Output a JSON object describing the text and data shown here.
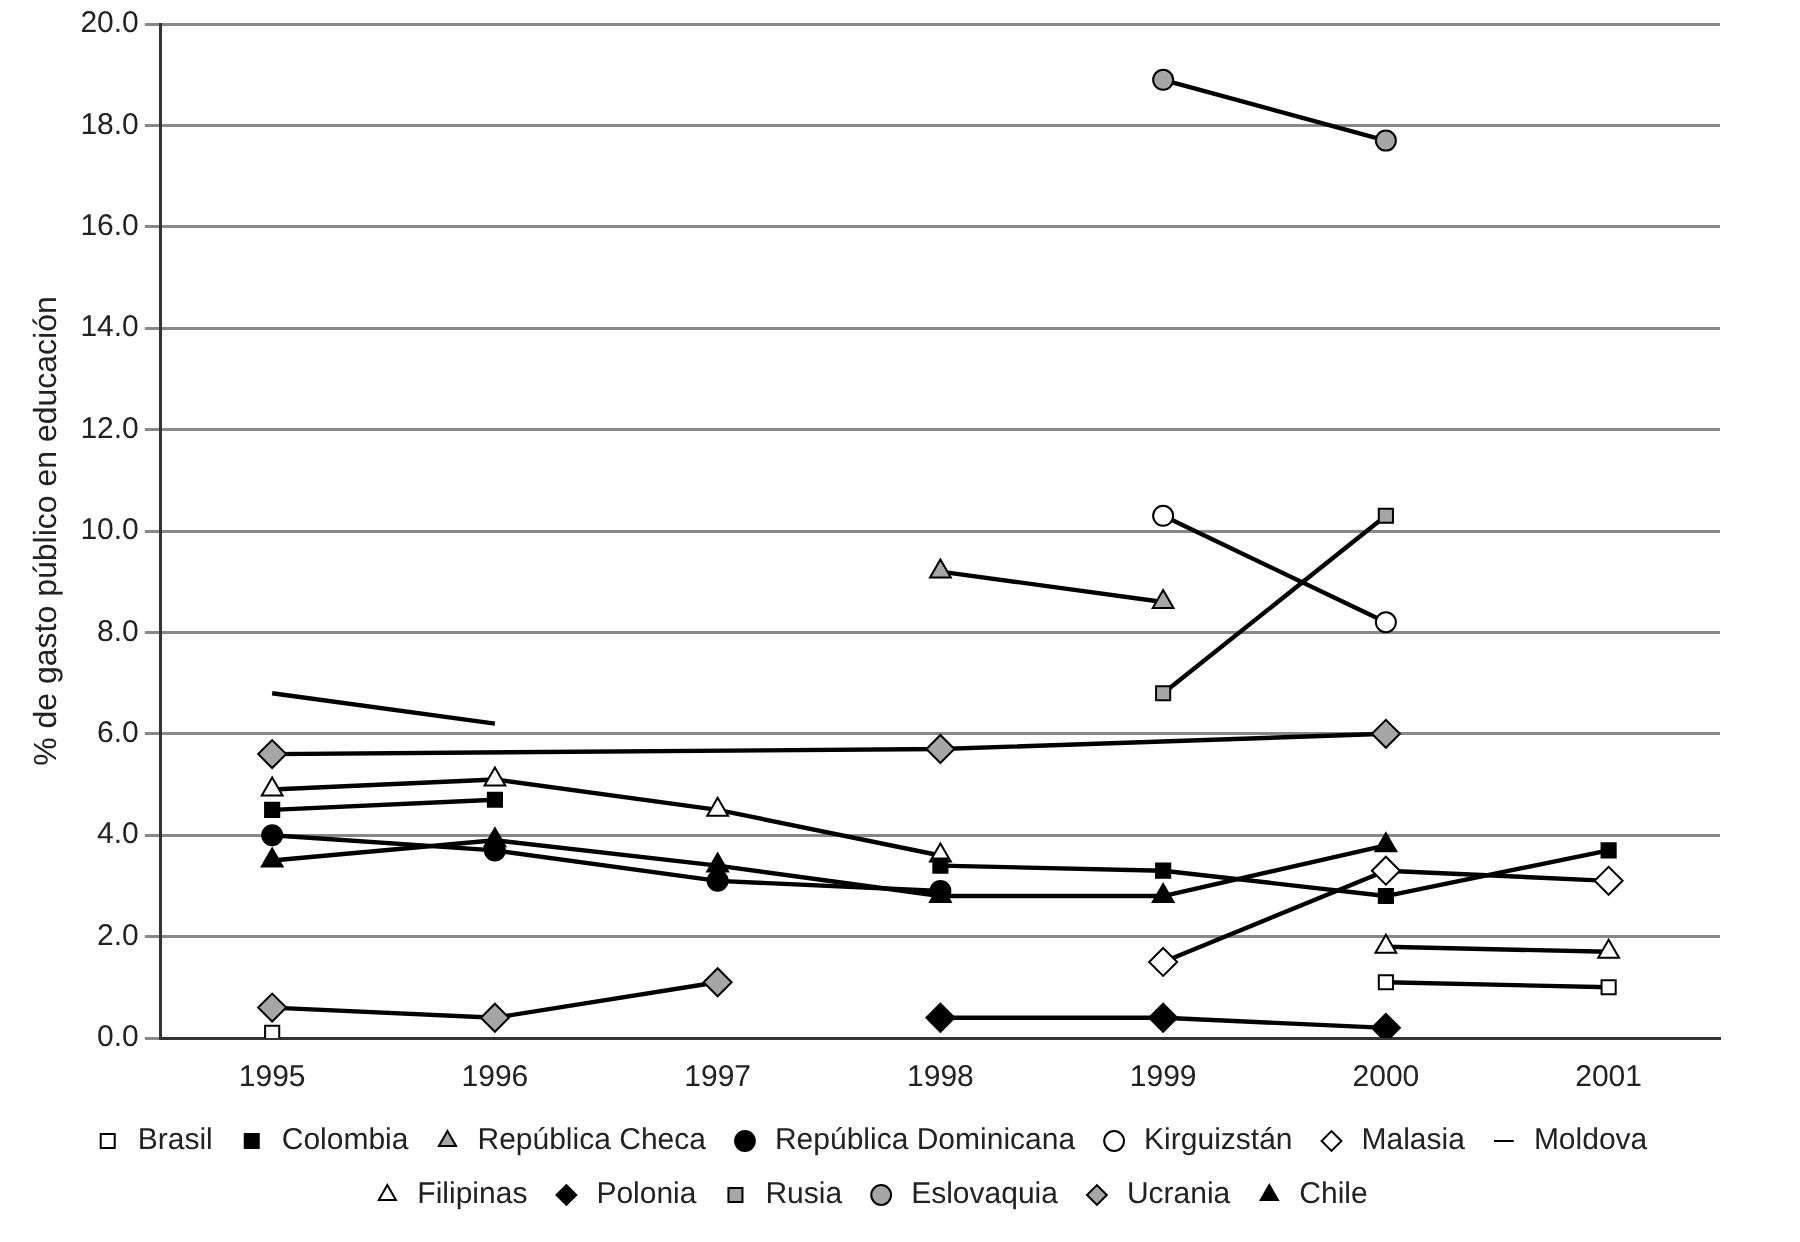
{
  "chart_data": {
    "type": "line",
    "ylabel": "% de gasto público en educación",
    "x": [
      1995,
      1996,
      1997,
      1998,
      1999,
      2000,
      2001
    ],
    "xlim": [
      1994.5,
      2001.5
    ],
    "xticks": [
      1995,
      1996,
      1997,
      1998,
      1999,
      2000,
      2001
    ],
    "ylim": [
      0,
      20
    ],
    "yticks": [
      {
        "value": 0,
        "label": "0.0"
      },
      {
        "value": 2,
        "label": "2.0"
      },
      {
        "value": 4,
        "label": "4.0"
      },
      {
        "value": 6,
        "label": "6.0"
      },
      {
        "value": 8,
        "label": "8.0"
      },
      {
        "value": 10,
        "label": "10.0"
      },
      {
        "value": 12,
        "label": "12.0"
      },
      {
        "value": 14,
        "label": "14.0"
      },
      {
        "value": 16,
        "label": "16.0"
      },
      {
        "value": 18,
        "label": "18.0"
      },
      {
        "value": 20,
        "label": "20.0"
      }
    ],
    "grid": "y",
    "legend": "bottom",
    "line_style": "solid",
    "series": [
      {
        "name": "Brasil",
        "color": "#ffffff",
        "marker": "square",
        "values": [
          0.1,
          null,
          null,
          null,
          null,
          1.1,
          1.0
        ]
      },
      {
        "name": "Colombia",
        "color": "#000000",
        "marker": "square",
        "values": [
          4.5,
          4.7,
          null,
          3.4,
          3.3,
          2.8,
          3.7
        ]
      },
      {
        "name": "República Checa",
        "color": "#a6a6a6",
        "marker": "triangle",
        "values": [
          null,
          null,
          null,
          9.2,
          8.6,
          null,
          null
        ]
      },
      {
        "name": "República Dominicana",
        "color": "#000000",
        "marker": "circle",
        "values": [
          4.0,
          3.7,
          3.1,
          2.9,
          null,
          null,
          null
        ]
      },
      {
        "name": "Kirguizstán",
        "color": "#ffffff",
        "marker": "circle",
        "values": [
          null,
          null,
          null,
          null,
          10.3,
          8.2,
          null
        ]
      },
      {
        "name": "Malasia",
        "color": "#ffffff",
        "marker": "diamond",
        "values": [
          null,
          null,
          null,
          null,
          1.5,
          3.3,
          3.1
        ]
      },
      {
        "name": "Moldova",
        "color": "#000000",
        "marker": "none",
        "values": [
          6.8,
          6.2,
          null,
          null,
          null,
          null,
          null
        ]
      },
      {
        "name": "Filipinas",
        "color": "#ffffff",
        "marker": "triangle",
        "values": [
          4.9,
          5.1,
          4.5,
          3.6,
          null,
          1.8,
          1.7
        ]
      },
      {
        "name": "Polonia",
        "color": "#000000",
        "marker": "diamond",
        "values": [
          null,
          null,
          null,
          0.4,
          0.4,
          0.2,
          null
        ]
      },
      {
        "name": "Rusia",
        "color": "#a6a6a6",
        "marker": "square",
        "values": [
          null,
          null,
          null,
          null,
          6.8,
          10.3,
          null
        ]
      },
      {
        "name": "Eslovaquia",
        "color": "#a6a6a6",
        "marker": "circle",
        "values": [
          null,
          null,
          null,
          null,
          18.9,
          17.7,
          null
        ]
      },
      {
        "name": "Ucrania",
        "color": "#a6a6a6",
        "marker": "diamond",
        "x": [
          1995,
          1998,
          2000
        ],
        "values": [
          5.6,
          5.7,
          6.0
        ]
      },
      {
        "name": "Chile",
        "color": "#000000",
        "marker": "triangle",
        "values": [
          3.5,
          3.9,
          3.4,
          2.8,
          2.8,
          3.8,
          null
        ]
      },
      {
        "color": "#a6a6a6",
        "marker": "diamond",
        "values": [
          0.6,
          0.4,
          1.1,
          null,
          null,
          null,
          null
        ]
      }
    ]
  }
}
